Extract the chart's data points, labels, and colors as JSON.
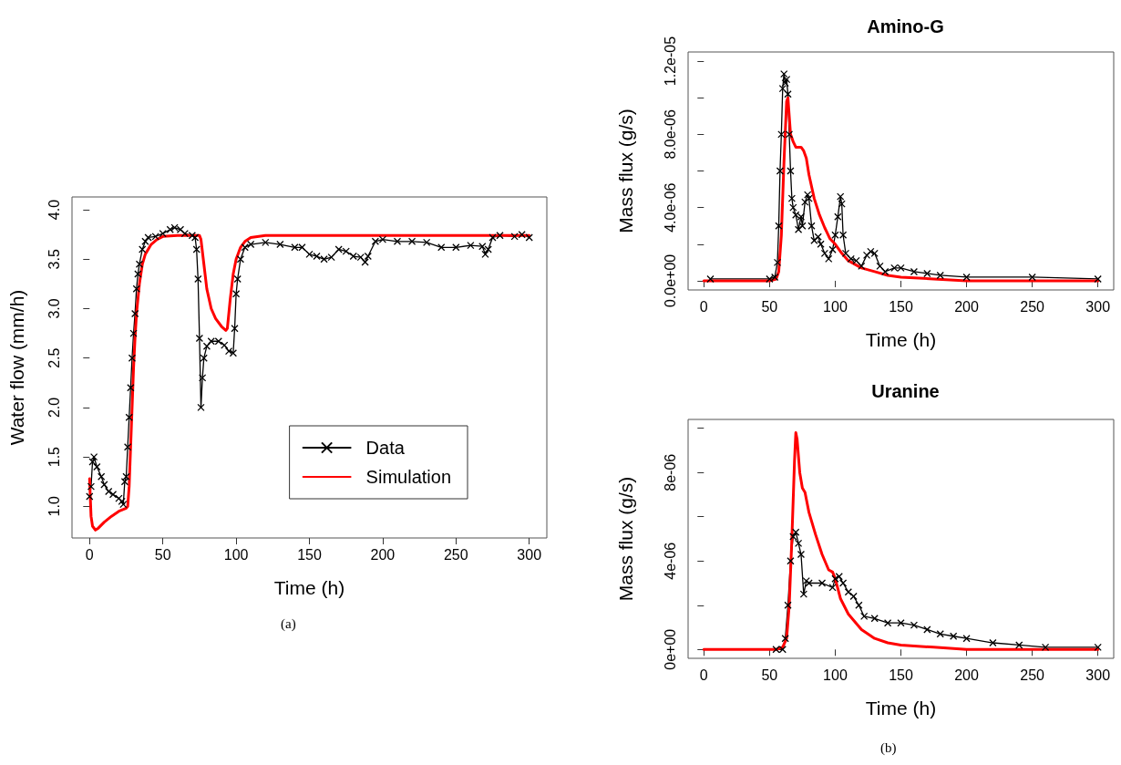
{
  "chart_data": [
    {
      "type": "line",
      "xlabel": "Time (h)",
      "ylabel": "Water flow (mm/h)",
      "xlim": [
        -12,
        312
      ],
      "xticks": [
        0,
        50,
        100,
        150,
        200,
        250,
        300
      ],
      "ylim": [
        0.68,
        4.13
      ],
      "yticks": [
        {
          "value": 1,
          "label": "1.0"
        },
        {
          "value": 1.5,
          "label": "1.5"
        },
        {
          "value": 2,
          "label": "2.0"
        },
        {
          "value": 2.5,
          "label": "2.5"
        },
        {
          "value": 3,
          "label": "3.0"
        },
        {
          "value": 3.5,
          "label": "3.5"
        },
        {
          "value": 4,
          "label": "4.0"
        }
      ],
      "grid": false,
      "legend": "bottom right",
      "annotations": [
        "(a)"
      ],
      "series": [
        {
          "name": "Data",
          "color": "#000000",
          "marker": "cross",
          "x": [
            0,
            1,
            2,
            3,
            5,
            8,
            10,
            13,
            16,
            20,
            22,
            23,
            24,
            25,
            26,
            27,
            28,
            29,
            30,
            31,
            32,
            33,
            34,
            36,
            38,
            40,
            45,
            50,
            55,
            58,
            62,
            65,
            70,
            72,
            73,
            74,
            75,
            76,
            77,
            78,
            80,
            83,
            88,
            92,
            95,
            98,
            99,
            100,
            101,
            103,
            106,
            110,
            120,
            130,
            140,
            145,
            150,
            155,
            160,
            165,
            170,
            175,
            180,
            185,
            188,
            190,
            195,
            200,
            210,
            220,
            230,
            240,
            250,
            260,
            268,
            270,
            272,
            275,
            280,
            290,
            295,
            300
          ],
          "values": [
            1.1,
            1.2,
            1.45,
            1.5,
            1.4,
            1.3,
            1.22,
            1.15,
            1.12,
            1.08,
            1.05,
            1.02,
            1.25,
            1.3,
            1.6,
            1.9,
            2.2,
            2.5,
            2.75,
            2.95,
            3.2,
            3.35,
            3.45,
            3.6,
            3.68,
            3.72,
            3.73,
            3.76,
            3.8,
            3.82,
            3.8,
            3.76,
            3.74,
            3.72,
            3.6,
            3.3,
            2.7,
            2.0,
            2.3,
            2.5,
            2.62,
            2.67,
            2.67,
            2.63,
            2.57,
            2.55,
            2.8,
            3.15,
            3.3,
            3.5,
            3.62,
            3.65,
            3.67,
            3.65,
            3.62,
            3.62,
            3.55,
            3.53,
            3.5,
            3.52,
            3.6,
            3.58,
            3.53,
            3.52,
            3.47,
            3.53,
            3.68,
            3.7,
            3.68,
            3.68,
            3.67,
            3.62,
            3.62,
            3.64,
            3.63,
            3.55,
            3.6,
            3.72,
            3.74,
            3.73,
            3.75,
            3.72
          ]
        },
        {
          "name": "Simulation",
          "color": "#ff0000",
          "marker": "none",
          "x": [
            0,
            1,
            2,
            4,
            6,
            10,
            15,
            20,
            25,
            26,
            27,
            28,
            29,
            30,
            31,
            32,
            34,
            36,
            38,
            42,
            46,
            50,
            60,
            75,
            76,
            78,
            80,
            83,
            86,
            90,
            93,
            94,
            96,
            98,
            100,
            103,
            106,
            110,
            120,
            300
          ],
          "values": [
            1.28,
            0.9,
            0.8,
            0.76,
            0.78,
            0.84,
            0.9,
            0.95,
            0.98,
            1.0,
            1.2,
            1.6,
            2.0,
            2.4,
            2.7,
            2.95,
            3.25,
            3.45,
            3.55,
            3.65,
            3.7,
            3.73,
            3.74,
            3.74,
            3.7,
            3.45,
            3.2,
            3.0,
            2.9,
            2.82,
            2.78,
            2.8,
            3.1,
            3.35,
            3.5,
            3.62,
            3.68,
            3.72,
            3.74,
            3.74
          ]
        }
      ]
    },
    {
      "type": "line",
      "title": "Amino-G",
      "xlabel": "Time (h)",
      "ylabel": "Mass flux (g/s)",
      "xlim": [
        -12,
        312
      ],
      "xticks": [
        0,
        50,
        100,
        150,
        200,
        250,
        300
      ],
      "ylim": [
        -5e-07,
        1.25e-05
      ],
      "yticks": [
        {
          "value": 0,
          "label": "0.0e+00"
        },
        {
          "value": 2e-06,
          "label": null
        },
        {
          "value": 4e-06,
          "label": "4.0e-06"
        },
        {
          "value": 6e-06,
          "label": null
        },
        {
          "value": 8e-06,
          "label": "8.0e-06"
        },
        {
          "value": 1e-05,
          "label": null
        },
        {
          "value": 1.2e-05,
          "label": "1.2e-05"
        }
      ],
      "grid": false,
      "legend": false,
      "series": [
        {
          "color": "#000000",
          "marker": "cross",
          "x": [
            5,
            50,
            54,
            56,
            57,
            58,
            59,
            60,
            61,
            62,
            63,
            64,
            65,
            66,
            67,
            68,
            70,
            72,
            74,
            75,
            77,
            79,
            80,
            82,
            84,
            87,
            89,
            92,
            95,
            98,
            100,
            102,
            104,
            105,
            106,
            108,
            112,
            116,
            120,
            124,
            127,
            130,
            134,
            138,
            145,
            150,
            160,
            170,
            180,
            200,
            250,
            300
          ],
          "values": [
            1e-07,
            1e-07,
            2e-07,
            1e-06,
            3e-06,
            6e-06,
            8e-06,
            1.05e-05,
            1.13e-05,
            1.08e-05,
            1.1e-05,
            1.02e-05,
            8e-06,
            6e-06,
            4.5e-06,
            4e-06,
            3.6e-06,
            2.8e-06,
            3.5e-06,
            3e-06,
            4.3e-06,
            4.7e-06,
            4.5e-06,
            3e-06,
            2.2e-06,
            2.4e-06,
            2e-06,
            1.5e-06,
            1.2e-06,
            1.7e-06,
            2.5e-06,
            3.5e-06,
            4.6e-06,
            4.2e-06,
            2.5e-06,
            1.5e-06,
            1.2e-06,
            1.1e-06,
            8e-07,
            1.4e-06,
            1.6e-06,
            1.5e-06,
            8e-07,
            5e-07,
            7e-07,
            7e-07,
            5e-07,
            4e-07,
            3e-07,
            2e-07,
            2e-07,
            1e-07
          ]
        },
        {
          "color": "#ff0000",
          "marker": "none",
          "x": [
            0,
            50,
            55,
            57,
            59,
            61,
            63,
            64,
            65,
            66,
            68,
            70,
            74,
            76,
            78,
            80,
            84,
            88,
            92,
            96,
            100,
            105,
            110,
            120,
            130,
            140,
            150,
            175,
            200,
            250,
            300
          ],
          "values": [
            0,
            0,
            1e-07,
            5e-07,
            2.5e-06,
            6.5e-06,
            9.8e-06,
            1e-05,
            9e-06,
            8e-06,
            7.6e-06,
            7.3e-06,
            7.3e-06,
            7.1e-06,
            6.7e-06,
            5.8e-06,
            4.5e-06,
            3.6e-06,
            2.9e-06,
            2.3e-06,
            2e-06,
            1.5e-06,
            1.1e-06,
            7e-07,
            5e-07,
            3e-07,
            2e-07,
            1e-07,
            0,
            0,
            0
          ]
        }
      ]
    },
    {
      "type": "line",
      "title": "Uranine",
      "xlabel": "Time (h)",
      "ylabel": "Mass flux (g/s)",
      "xlim": [
        -12,
        312
      ],
      "xticks": [
        0,
        50,
        100,
        150,
        200,
        250,
        300
      ],
      "ylim": [
        -4e-07,
        1.04e-05
      ],
      "yticks": [
        {
          "value": 0,
          "label": "0e+00"
        },
        {
          "value": 2e-06,
          "label": null
        },
        {
          "value": 4e-06,
          "label": "4e-06"
        },
        {
          "value": 6e-06,
          "label": null
        },
        {
          "value": 8e-06,
          "label": "8e-06"
        },
        {
          "value": 1e-05,
          "label": null
        }
      ],
      "grid": false,
      "legend": false,
      "annotations": [
        "(b)"
      ],
      "series": [
        {
          "color": "#000000",
          "marker": "cross",
          "x": [
            55,
            60,
            62,
            64,
            66,
            68,
            70,
            72,
            74,
            76,
            78,
            80,
            90,
            98,
            100,
            103,
            106,
            110,
            114,
            118,
            122,
            130,
            140,
            150,
            160,
            170,
            180,
            190,
            200,
            220,
            240,
            260,
            300
          ],
          "values": [
            0,
            0,
            5e-07,
            2e-06,
            4e-06,
            5.1e-06,
            5.3e-06,
            4.8e-06,
            4.3e-06,
            2.5e-06,
            3.1e-06,
            3e-06,
            3e-06,
            2.8e-06,
            3.2e-06,
            3.3e-06,
            3e-06,
            2.6e-06,
            2.4e-06,
            2e-06,
            1.5e-06,
            1.4e-06,
            1.2e-06,
            1.2e-06,
            1.1e-06,
            9e-07,
            7e-07,
            6e-07,
            5e-07,
            3e-07,
            2e-07,
            1e-07,
            1e-07
          ]
        },
        {
          "color": "#ff0000",
          "marker": "none",
          "x": [
            0,
            55,
            60,
            63,
            65,
            67,
            69,
            70,
            71,
            73,
            75,
            77,
            80,
            85,
            90,
            95,
            98,
            100,
            104,
            110,
            120,
            130,
            140,
            150,
            175,
            200,
            300
          ],
          "values": [
            0,
            0,
            1e-07,
            5e-07,
            2e-06,
            5e-06,
            8.5e-06,
            9.8e-06,
            9.5e-06,
            8e-06,
            7.3e-06,
            7.1e-06,
            6.2e-06,
            5.2e-06,
            4.3e-06,
            3.6e-06,
            3.5e-06,
            3.2e-06,
            2.3e-06,
            1.6e-06,
            9e-07,
            5e-07,
            3e-07,
            2e-07,
            1e-07,
            0,
            0
          ]
        }
      ]
    }
  ]
}
